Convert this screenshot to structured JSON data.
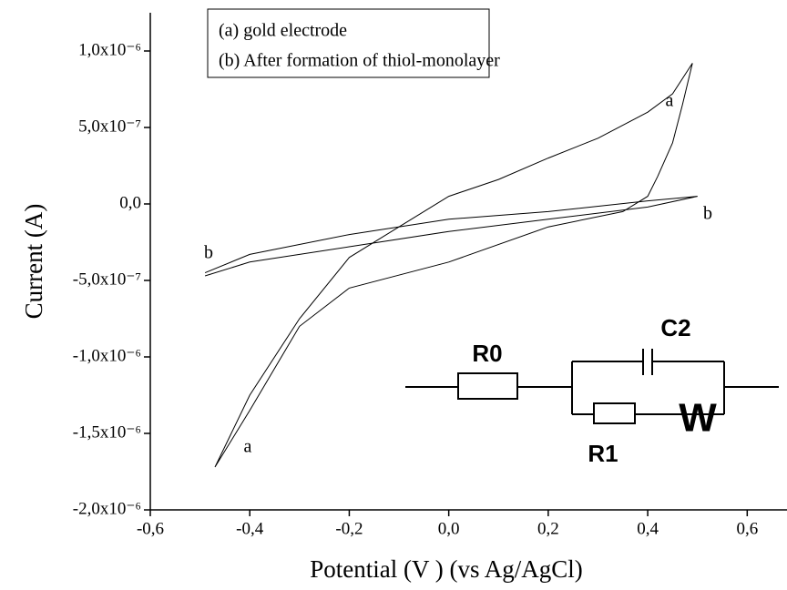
{
  "chart_data": {
    "type": "line",
    "xlabel": "Potential (V ) (vs Ag/AgCl)",
    "ylabel": "Current (A)",
    "xlim": [
      -0.6,
      0.68
    ],
    "ylim": [
      -2e-06,
      1.25e-06
    ],
    "xticks": [
      {
        "value": -0.6,
        "label": "-0,6"
      },
      {
        "value": -0.4,
        "label": "-0,4"
      },
      {
        "value": -0.2,
        "label": "-0,2"
      },
      {
        "value": 0,
        "label": "0,0"
      },
      {
        "value": 0.2,
        "label": "0,2"
      },
      {
        "value": 0.4,
        "label": "0,4"
      },
      {
        "value": 0.6,
        "label": "0,6"
      }
    ],
    "yticks": [
      {
        "value": 1e-06,
        "label": "1,0x10⁻⁶"
      },
      {
        "value": 5e-07,
        "label": "5,0x10⁻⁷"
      },
      {
        "value": 0,
        "label": "0,0"
      },
      {
        "value": -5e-07,
        "label": "-5,0x10⁻⁷"
      },
      {
        "value": -1e-06,
        "label": "-1,0x10⁻⁶"
      },
      {
        "value": -1.5e-06,
        "label": "-1,5x10⁻⁶"
      },
      {
        "value": -2e-06,
        "label": "-2,0x10⁻⁶"
      }
    ],
    "legend_texts": [
      "(a) gold electrode",
      "(b) After formation of thiol-monolayer"
    ],
    "series": [
      {
        "color": "#000000",
        "x": [
          -0.47,
          -0.4,
          -0.3,
          -0.2,
          -0.1,
          0.0,
          0.1,
          0.2,
          0.3,
          0.4,
          0.45,
          0.49,
          0.47,
          0.45,
          0.42,
          0.4,
          0.35,
          0.2,
          0.0,
          -0.2,
          -0.3,
          -0.4,
          -0.47
        ],
        "values": [
          -1.72e-06,
          -1.25e-06,
          -7.5e-07,
          -3.5e-07,
          -1.5e-07,
          5e-08,
          1.6e-07,
          3e-07,
          4.3e-07,
          6e-07,
          7.2e-07,
          9.2e-07,
          6.5e-07,
          4e-07,
          1.8e-07,
          5e-08,
          -5e-08,
          -1.5e-07,
          -3.8e-07,
          -5.5e-07,
          -8e-07,
          -1.35e-06,
          -1.72e-06
        ]
      },
      {
        "color": "#000000",
        "x": [
          -0.49,
          -0.4,
          -0.2,
          0.0,
          0.2,
          0.4,
          0.5,
          0.4,
          0.2,
          0.0,
          -0.2,
          -0.4,
          -0.49
        ],
        "values": [
          -4.5e-07,
          -3.3e-07,
          -2e-07,
          -1e-07,
          -5e-08,
          2e-08,
          5e-08,
          -2e-08,
          -1e-07,
          -1.8e-07,
          -2.8e-07,
          -3.8e-07,
          -4.7e-07
        ]
      }
    ],
    "annotations": [
      "a",
      "a",
      "b",
      "b"
    ],
    "circuit_labels": [
      "R0",
      "C2",
      "R1",
      "W"
    ]
  }
}
